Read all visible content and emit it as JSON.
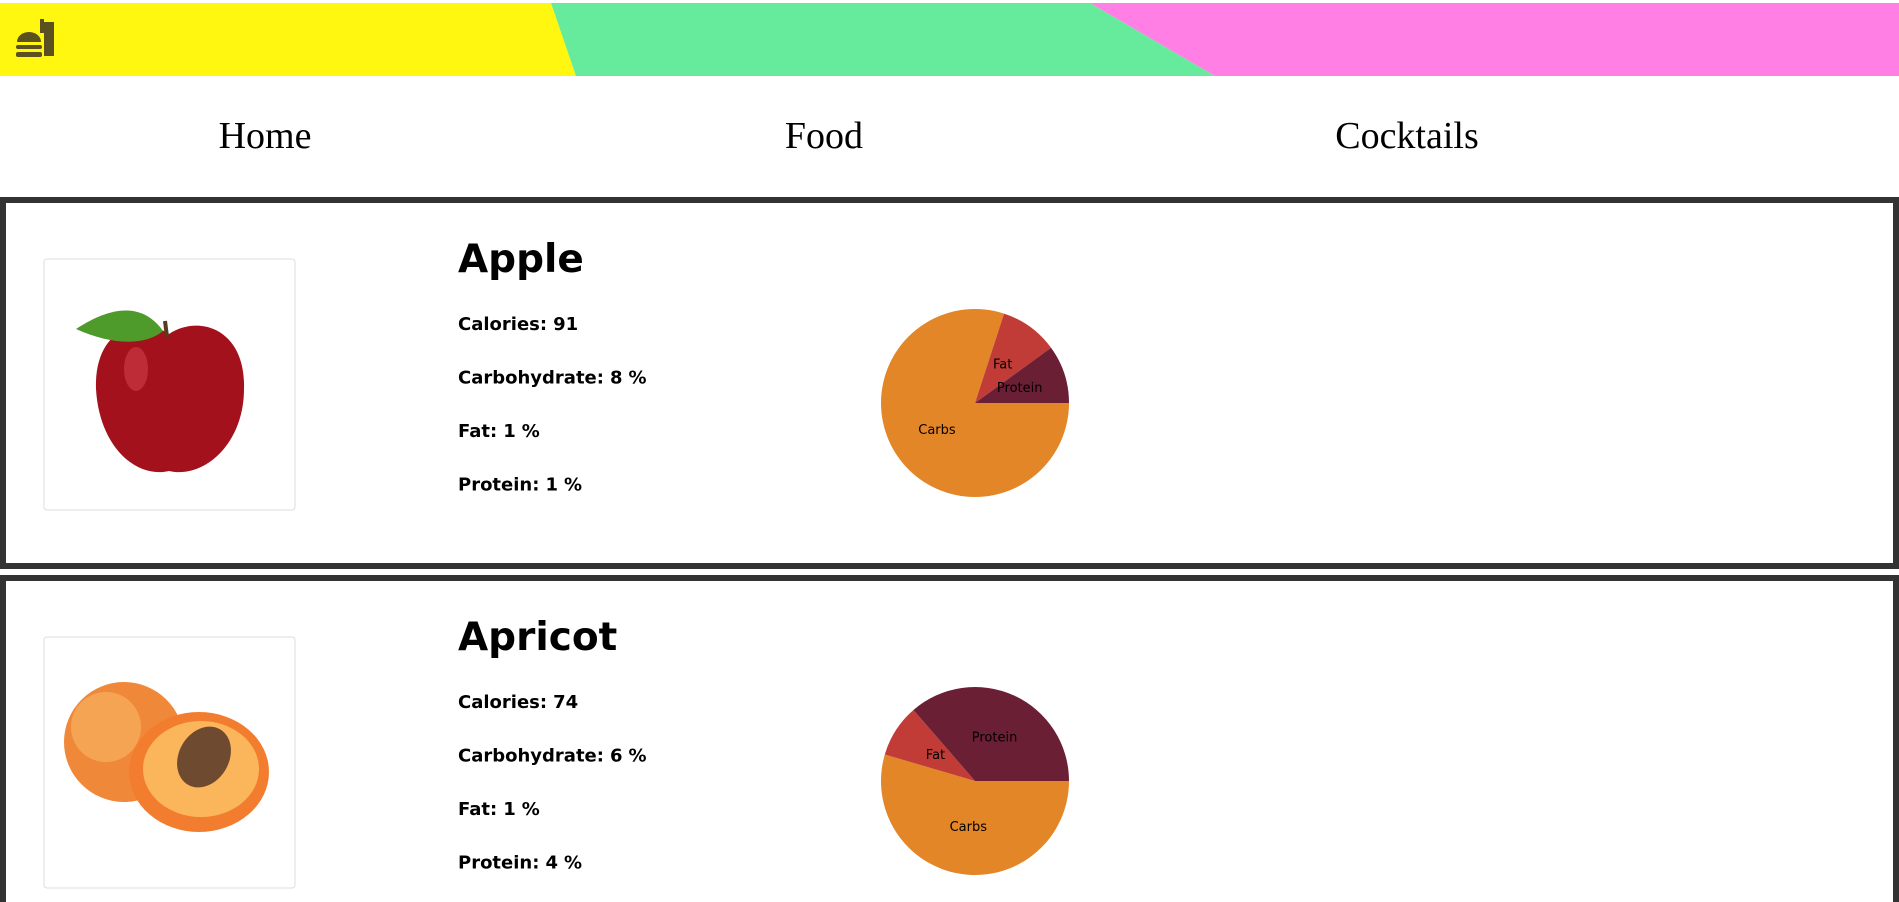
{
  "header": {
    "nav": [
      "Home",
      "Food",
      "Cocktails"
    ]
  },
  "items": [
    {
      "name": "Apple",
      "stats": [
        {
          "label": "Calories:",
          "value": 91
        },
        {
          "label": "Carbohydrate:",
          "value": 8,
          "unit": "%"
        },
        {
          "label": "Fat:",
          "value": 1,
          "unit": "%"
        },
        {
          "label": "Protein:",
          "value": 1,
          "unit": "%"
        }
      ],
      "chart_data": {
        "type": "pie",
        "categories": [
          "Carbs",
          "Fat",
          "Protein"
        ],
        "colors": [
          "#e38628",
          "#c13c37",
          "#6b1f35"
        ]
      }
    },
    {
      "name": "Apricot",
      "stats": [
        {
          "label": "Calories:",
          "value": 74
        },
        {
          "label": "Carbohydrate:",
          "value": 6,
          "unit": "%"
        },
        {
          "label": "Fat:",
          "value": 1,
          "unit": "%"
        },
        {
          "label": "Protein:",
          "value": 4,
          "unit": "%"
        }
      ],
      "chart_data": {
        "type": "pie",
        "categories": [
          "Carbs",
          "Fat",
          "Protein"
        ],
        "colors": [
          "#e38628",
          "#c13c37",
          "#6b1f35"
        ]
      }
    }
  ]
}
